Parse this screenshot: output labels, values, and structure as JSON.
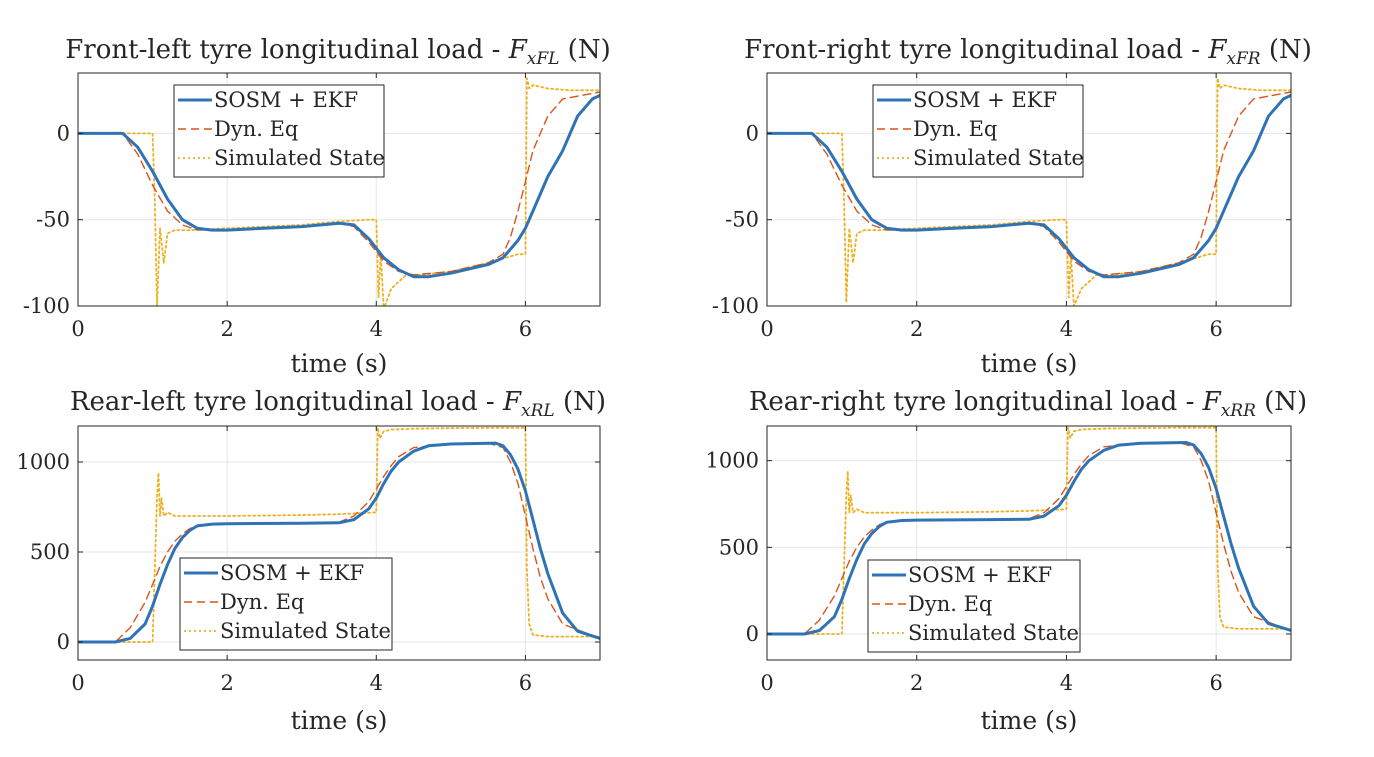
{
  "figure": {
    "colors": {
      "sosm_ekf": "#2f73b7",
      "dyn_eq": "#d9541a",
      "simulated": "#edb120",
      "axis": "#262626",
      "grid": "#e6e6e6"
    }
  },
  "chart_data": [
    {
      "type": "line",
      "title_prefix": "Front-left tyre longitudinal load - ",
      "title_symbol": "F",
      "title_subscript": "xFL",
      "title_suffix": " (N)",
      "xlabel": "time (s)",
      "ylabel": "",
      "xlim": [
        0,
        7
      ],
      "ylim": [
        -100,
        35
      ],
      "xticks": [
        0,
        2,
        4,
        6
      ],
      "yticks": [
        -100,
        -50,
        0
      ],
      "xtick_labels": [
        "0",
        "2",
        "4",
        "6"
      ],
      "ytick_labels": [
        "-100",
        "-50",
        "0"
      ],
      "grid": true,
      "legend_position": "top-left",
      "series": [
        {
          "name": "SOSM + EKF",
          "style": "solid",
          "x": [
            0,
            0.3,
            0.6,
            0.8,
            1.0,
            1.2,
            1.4,
            1.6,
            1.8,
            2.0,
            2.5,
            3.0,
            3.5,
            3.7,
            3.9,
            4.1,
            4.3,
            4.5,
            4.7,
            5.0,
            5.5,
            5.7,
            5.9,
            6.0,
            6.1,
            6.3,
            6.5,
            6.7,
            6.9,
            7.0
          ],
          "y": [
            0,
            0,
            0,
            -8,
            -22,
            -38,
            -50,
            -55,
            -56,
            -56,
            -55,
            -54,
            -52,
            -53,
            -61,
            -72,
            -79,
            -83,
            -83,
            -81,
            -76,
            -72,
            -62,
            -55,
            -45,
            -25,
            -10,
            10,
            20,
            22
          ]
        },
        {
          "name": "Dyn. Eq",
          "style": "dashed",
          "x": [
            0,
            0.6,
            0.8,
            1.0,
            1.2,
            1.4,
            1.6,
            2.0,
            3.0,
            3.5,
            3.7,
            3.9,
            4.1,
            4.3,
            4.5,
            5.0,
            5.5,
            5.7,
            5.8,
            5.9,
            6.0,
            6.1,
            6.3,
            6.5,
            7.0
          ],
          "y": [
            0,
            0,
            -12,
            -30,
            -45,
            -53,
            -56,
            -56,
            -54,
            -52,
            -54,
            -63,
            -74,
            -80,
            -82,
            -80,
            -75,
            -70,
            -60,
            -45,
            -28,
            -10,
            10,
            20,
            24
          ]
        },
        {
          "name": "Simulated State",
          "style": "dotted",
          "x": [
            0,
            1.0,
            1.03,
            1.06,
            1.1,
            1.15,
            1.2,
            1.3,
            1.5,
            2.0,
            3.0,
            3.5,
            3.9,
            4.0,
            4.03,
            4.06,
            4.1,
            4.2,
            4.4,
            4.6,
            5.0,
            5.5,
            5.9,
            6.0,
            6.02,
            6.05,
            6.1,
            6.3,
            6.6,
            7.0
          ],
          "y": [
            0,
            0,
            -40,
            -100,
            -55,
            -75,
            -58,
            -56,
            -56,
            -55,
            -53,
            -51,
            -50,
            -50,
            -95,
            -70,
            -102,
            -90,
            -82,
            -82,
            -80,
            -75,
            -70,
            -70,
            32,
            26,
            28,
            26,
            25,
            25
          ]
        }
      ]
    },
    {
      "type": "line",
      "title_prefix": "Front-right tyre longitudinal load - ",
      "title_symbol": "F",
      "title_subscript": "xFR",
      "title_suffix": " (N)",
      "xlabel": "time (s)",
      "ylabel": "",
      "xlim": [
        0,
        7
      ],
      "ylim": [
        -100,
        35
      ],
      "xticks": [
        0,
        2,
        4,
        6
      ],
      "yticks": [
        -100,
        -50,
        0
      ],
      "xtick_labels": [
        "0",
        "2",
        "4",
        "6"
      ],
      "ytick_labels": [
        "-100",
        "-50",
        "0"
      ],
      "grid": true,
      "legend_position": "top-left",
      "series": [
        {
          "name": "SOSM + EKF",
          "style": "solid",
          "x": [
            0,
            0.3,
            0.6,
            0.8,
            1.0,
            1.2,
            1.4,
            1.6,
            1.8,
            2.0,
            2.5,
            3.0,
            3.5,
            3.7,
            3.9,
            4.1,
            4.3,
            4.5,
            4.7,
            5.0,
            5.5,
            5.7,
            5.9,
            6.0,
            6.1,
            6.3,
            6.5,
            6.7,
            6.9,
            7.0
          ],
          "y": [
            0,
            0,
            0,
            -8,
            -22,
            -38,
            -50,
            -55,
            -56,
            -56,
            -55,
            -54,
            -52,
            -53,
            -61,
            -72,
            -79,
            -83,
            -83,
            -81,
            -76,
            -72,
            -62,
            -55,
            -45,
            -25,
            -10,
            10,
            20,
            22
          ]
        },
        {
          "name": "Dyn. Eq",
          "style": "dashed",
          "x": [
            0,
            0.6,
            0.8,
            1.0,
            1.2,
            1.4,
            1.6,
            2.0,
            3.0,
            3.5,
            3.7,
            3.9,
            4.1,
            4.3,
            4.5,
            5.0,
            5.5,
            5.7,
            5.8,
            5.9,
            6.0,
            6.1,
            6.3,
            6.5,
            7.0
          ],
          "y": [
            0,
            0,
            -12,
            -30,
            -45,
            -53,
            -56,
            -56,
            -54,
            -52,
            -54,
            -63,
            -74,
            -80,
            -82,
            -80,
            -75,
            -70,
            -60,
            -45,
            -28,
            -10,
            10,
            20,
            24
          ]
        },
        {
          "name": "Simulated State",
          "style": "dotted",
          "x": [
            0,
            1.0,
            1.03,
            1.06,
            1.1,
            1.15,
            1.2,
            1.3,
            1.5,
            2.0,
            3.0,
            3.5,
            3.9,
            4.0,
            4.03,
            4.06,
            4.1,
            4.2,
            4.4,
            4.6,
            5.0,
            5.5,
            5.9,
            6.0,
            6.02,
            6.05,
            6.1,
            6.3,
            6.6,
            7.0
          ],
          "y": [
            0,
            0,
            -40,
            -98,
            -55,
            -75,
            -58,
            -56,
            -56,
            -55,
            -53,
            -51,
            -50,
            -50,
            -95,
            -70,
            -100,
            -90,
            -82,
            -82,
            -80,
            -75,
            -70,
            -70,
            32,
            26,
            28,
            26,
            25,
            25
          ]
        }
      ]
    },
    {
      "type": "line",
      "title_prefix": "Rear-left tyre longitudinal load - ",
      "title_symbol": "F",
      "title_subscript": "xRL",
      "title_suffix": " (N)",
      "xlabel": "time (s)",
      "ylabel": "",
      "xlim": [
        0,
        7
      ],
      "ylim": [
        -100,
        1200
      ],
      "xticks": [
        0,
        2,
        4,
        6
      ],
      "yticks": [
        0,
        500,
        1000
      ],
      "xtick_labels": [
        "0",
        "2",
        "4",
        "6"
      ],
      "ytick_labels": [
        "0",
        "500",
        "1000"
      ],
      "grid": true,
      "legend_position": "bottom-left",
      "series": [
        {
          "name": "SOSM + EKF",
          "style": "solid",
          "x": [
            0,
            0.5,
            0.7,
            0.9,
            1.0,
            1.1,
            1.2,
            1.3,
            1.4,
            1.5,
            1.6,
            1.8,
            2.0,
            3.0,
            3.5,
            3.7,
            3.9,
            4.0,
            4.1,
            4.2,
            4.3,
            4.5,
            4.7,
            5.0,
            5.6,
            5.7,
            5.8,
            5.9,
            6.0,
            6.1,
            6.2,
            6.3,
            6.5,
            6.7,
            7.0
          ],
          "y": [
            0,
            0,
            20,
            100,
            200,
            320,
            430,
            520,
            580,
            620,
            645,
            655,
            657,
            660,
            662,
            680,
            740,
            800,
            880,
            950,
            1000,
            1060,
            1090,
            1100,
            1105,
            1090,
            1040,
            960,
            840,
            680,
            520,
            380,
            160,
            60,
            20
          ]
        },
        {
          "name": "Dyn. Eq",
          "style": "dashed",
          "x": [
            0,
            0.5,
            0.7,
            0.9,
            1.0,
            1.1,
            1.2,
            1.3,
            1.4,
            1.5,
            1.6,
            2.0,
            3.0,
            3.5,
            3.7,
            3.9,
            4.0,
            4.1,
            4.2,
            4.3,
            4.5,
            5.0,
            5.5,
            5.7,
            5.8,
            5.9,
            6.0,
            6.1,
            6.2,
            6.3,
            6.5,
            7.0
          ],
          "y": [
            0,
            0,
            80,
            220,
            320,
            420,
            500,
            560,
            600,
            630,
            648,
            655,
            660,
            665,
            700,
            780,
            850,
            920,
            980,
            1030,
            1080,
            1100,
            1105,
            1080,
            1000,
            880,
            700,
            520,
            360,
            240,
            100,
            20
          ]
        },
        {
          "name": "Simulated State",
          "style": "dotted",
          "x": [
            0,
            1.0,
            1.03,
            1.06,
            1.08,
            1.1,
            1.12,
            1.15,
            1.2,
            1.3,
            1.5,
            2.0,
            3.0,
            3.5,
            4.0,
            4.02,
            4.05,
            4.1,
            4.2,
            4.5,
            5.0,
            5.5,
            6.0,
            6.02,
            6.05,
            6.1,
            6.3,
            6.6,
            7.0
          ],
          "y": [
            0,
            0,
            400,
            800,
            940,
            700,
            800,
            700,
            720,
            700,
            700,
            700,
            705,
            710,
            720,
            1190,
            1130,
            1170,
            1180,
            1185,
            1188,
            1190,
            1190,
            400,
            100,
            40,
            30,
            30,
            30
          ]
        }
      ]
    },
    {
      "type": "line",
      "title_prefix": "Rear-right tyre longitudinal load - ",
      "title_symbol": "F",
      "title_subscript": "xRR",
      "title_suffix": " (N)",
      "xlabel": "time (s)",
      "ylabel": "",
      "xlim": [
        0,
        7
      ],
      "ylim": [
        -150,
        1200
      ],
      "xticks": [
        0,
        2,
        4,
        6
      ],
      "yticks": [
        0,
        500,
        1000
      ],
      "xtick_labels": [
        "0",
        "2",
        "4",
        "6"
      ],
      "ytick_labels": [
        "0",
        "500",
        "1000"
      ],
      "grid": true,
      "legend_position": "bottom-left",
      "series": [
        {
          "name": "SOSM + EKF",
          "style": "solid",
          "x": [
            0,
            0.5,
            0.7,
            0.9,
            1.0,
            1.1,
            1.2,
            1.3,
            1.4,
            1.5,
            1.6,
            1.8,
            2.0,
            3.0,
            3.5,
            3.7,
            3.9,
            4.0,
            4.1,
            4.2,
            4.3,
            4.5,
            4.7,
            5.0,
            5.6,
            5.7,
            5.8,
            5.9,
            6.0,
            6.1,
            6.2,
            6.3,
            6.5,
            6.7,
            7.0
          ],
          "y": [
            0,
            0,
            20,
            100,
            200,
            320,
            430,
            520,
            580,
            620,
            645,
            655,
            657,
            660,
            662,
            680,
            740,
            800,
            880,
            950,
            1000,
            1060,
            1090,
            1100,
            1105,
            1090,
            1040,
            960,
            840,
            680,
            520,
            380,
            160,
            60,
            20
          ]
        },
        {
          "name": "Dyn. Eq",
          "style": "dashed",
          "x": [
            0,
            0.5,
            0.7,
            0.9,
            1.0,
            1.1,
            1.2,
            1.3,
            1.4,
            1.5,
            1.6,
            2.0,
            3.0,
            3.5,
            3.7,
            3.9,
            4.0,
            4.1,
            4.2,
            4.3,
            4.5,
            5.0,
            5.5,
            5.7,
            5.8,
            5.9,
            6.0,
            6.1,
            6.2,
            6.3,
            6.5,
            7.0
          ],
          "y": [
            0,
            0,
            80,
            220,
            320,
            420,
            500,
            560,
            600,
            630,
            648,
            655,
            660,
            665,
            700,
            780,
            850,
            920,
            980,
            1030,
            1080,
            1100,
            1105,
            1080,
            1000,
            880,
            700,
            520,
            360,
            240,
            100,
            20
          ]
        },
        {
          "name": "Simulated State",
          "style": "dotted",
          "x": [
            0,
            1.0,
            1.03,
            1.06,
            1.08,
            1.1,
            1.12,
            1.15,
            1.2,
            1.3,
            1.5,
            2.0,
            3.0,
            3.5,
            4.0,
            4.02,
            4.05,
            4.1,
            4.2,
            4.5,
            5.0,
            5.5,
            6.0,
            6.02,
            6.05,
            6.1,
            6.3,
            6.6,
            7.0
          ],
          "y": [
            0,
            0,
            400,
            800,
            940,
            700,
            800,
            700,
            720,
            700,
            700,
            700,
            705,
            710,
            720,
            1190,
            1130,
            1170,
            1180,
            1185,
            1188,
            1190,
            1190,
            400,
            100,
            40,
            30,
            30,
            30
          ]
        }
      ]
    }
  ]
}
